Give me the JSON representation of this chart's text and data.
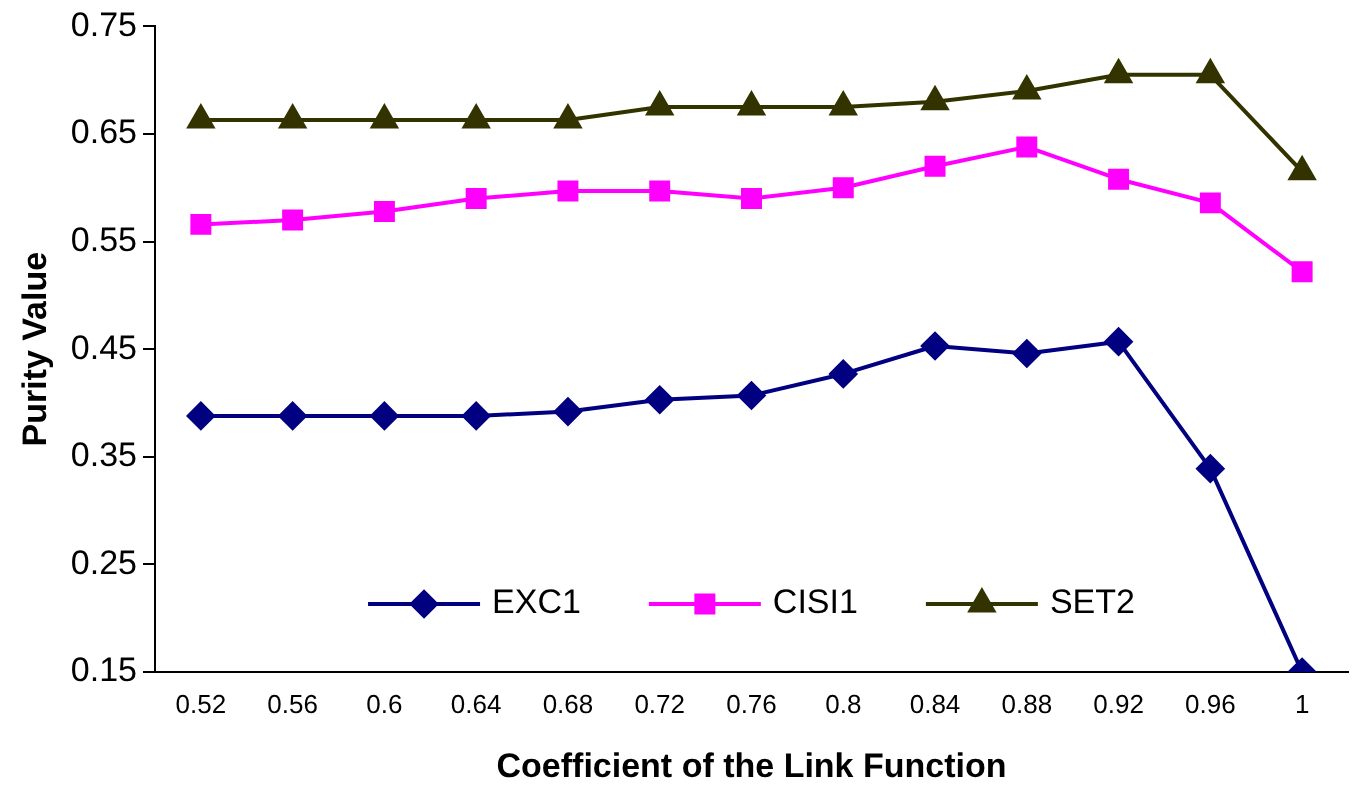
{
  "chart_data": {
    "type": "line",
    "xlabel": "Coefficient of the Link Function",
    "ylabel": "Purity Value",
    "categories": [
      "0.52",
      "0.56",
      "0.6",
      "0.64",
      "0.68",
      "0.72",
      "0.76",
      "0.8",
      "0.84",
      "0.88",
      "0.92",
      "0.96",
      "1"
    ],
    "series": [
      {
        "name": "EXC1",
        "color": "#000080",
        "marker": "diamond",
        "values": [
          0.388,
          0.388,
          0.388,
          0.388,
          0.392,
          0.403,
          0.407,
          0.427,
          0.453,
          0.446,
          0.457,
          0.339,
          0.15
        ]
      },
      {
        "name": "CISI1",
        "color": "#ff00ff",
        "marker": "square",
        "values": [
          0.566,
          0.57,
          0.578,
          0.59,
          0.597,
          0.597,
          0.59,
          0.6,
          0.62,
          0.638,
          0.608,
          0.586,
          0.522
        ]
      },
      {
        "name": "SET2",
        "color": "#333300",
        "marker": "triangle",
        "values": [
          0.663,
          0.663,
          0.663,
          0.663,
          0.663,
          0.675,
          0.675,
          0.675,
          0.68,
          0.69,
          0.705,
          0.705,
          0.615
        ]
      }
    ],
    "ylim": [
      0.15,
      0.75
    ],
    "yticks": [
      0.15,
      0.25,
      0.35,
      0.45,
      0.55,
      0.65,
      0.75
    ],
    "grid": false,
    "legend": "bottom"
  }
}
